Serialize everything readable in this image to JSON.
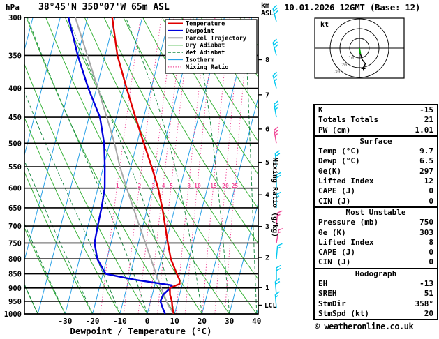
{
  "meta": {
    "title": "38°45'N 350°07'W 65m ASL",
    "datetime": "10.01.2026 12GMT (Base: 12)",
    "copyright": "© weatheronline.co.uk"
  },
  "axes": {
    "pressure_unit": "hPa",
    "altitude_unit_lines": [
      "km",
      "ASL"
    ],
    "x_label": "Dewpoint / Temperature (°C)",
    "x_ticks": [
      -30,
      -20,
      -10,
      0,
      10,
      20,
      30,
      40
    ],
    "pressure_ticks": [
      300,
      350,
      400,
      450,
      500,
      550,
      600,
      650,
      700,
      750,
      800,
      850,
      900,
      950,
      1000
    ],
    "km_ticks": [
      1,
      2,
      3,
      4,
      5,
      6,
      7,
      8
    ],
    "mixing_ratio_axis_label": "Mixing Ratio (g/kg)",
    "lcl_label": "LCL"
  },
  "legend": [
    {
      "label": "Temperature",
      "color": "#e00000",
      "style": "solid",
      "width": 2
    },
    {
      "label": "Dewpoint",
      "color": "#0000dd",
      "style": "solid",
      "width": 2
    },
    {
      "label": "Parcel Trajectory",
      "color": "#a6a6a6",
      "style": "solid",
      "width": 2
    },
    {
      "label": "Dry Adiabat",
      "color": "#3cb43c",
      "style": "solid",
      "width": 1.3
    },
    {
      "label": "Wet Adiabat",
      "color": "#1e8c46",
      "style": "dashed",
      "width": 1.3
    },
    {
      "label": "Isotherm",
      "color": "#28a0e6",
      "style": "solid",
      "width": 1.3
    },
    {
      "label": "Mixing Ratio",
      "color": "#f04696",
      "style": "dotted",
      "width": 1.3
    }
  ],
  "chart_data": {
    "type": "line",
    "variant": "skew-t-log-p",
    "title": "38°45'N 350°07'W 65m ASL",
    "x_axis": {
      "label": "Dewpoint / Temperature (°C)",
      "min": -40,
      "max": 40,
      "ticks": [
        -30,
        -20,
        -10,
        0,
        10,
        20,
        30,
        40
      ]
    },
    "y_axis": {
      "label": "hPa",
      "scale": "log",
      "min": 300,
      "max": 1000,
      "ticks": [
        300,
        350,
        400,
        450,
        500,
        550,
        600,
        650,
        700,
        750,
        800,
        850,
        900,
        950,
        1000
      ]
    },
    "isotherm_step": 10,
    "dry_adiabat_step": 10,
    "wet_adiabat_step": 10,
    "mixing_ratio_lines": [
      1,
      2,
      3,
      4,
      5,
      8,
      10,
      15,
      20,
      25
    ],
    "lcl_pressure": 965,
    "colors": {
      "isotherm": "#28a0e6",
      "dry_adiabat": "#3cb43c",
      "wet_adiabat": "#1e8c46",
      "mixing_ratio": "#f04696",
      "pressure_line": "#000000"
    },
    "series": [
      {
        "name": "Temperature",
        "color": "#e00000",
        "points_p_t": [
          [
            1000,
            9.7
          ],
          [
            975,
            8.6
          ],
          [
            950,
            7.8
          ],
          [
            925,
            6.5
          ],
          [
            900,
            5.8
          ],
          [
            885,
            9.0
          ],
          [
            870,
            8.5
          ],
          [
            850,
            7.0
          ],
          [
            800,
            3.4
          ],
          [
            750,
            0.8
          ],
          [
            700,
            -1.8
          ],
          [
            650,
            -4.6
          ],
          [
            600,
            -8.0
          ],
          [
            550,
            -12.4
          ],
          [
            500,
            -17.5
          ],
          [
            450,
            -23.0
          ],
          [
            400,
            -29.0
          ],
          [
            350,
            -35.5
          ],
          [
            300,
            -41.0
          ]
        ]
      },
      {
        "name": "Dewpoint",
        "color": "#0000dd",
        "points_p_t": [
          [
            1000,
            6.5
          ],
          [
            975,
            5.0
          ],
          [
            950,
            3.6
          ],
          [
            925,
            4.0
          ],
          [
            900,
            6.0
          ],
          [
            890,
            6.3
          ],
          [
            870,
            -8.0
          ],
          [
            850,
            -19.0
          ],
          [
            800,
            -23.5
          ],
          [
            750,
            -26.0
          ],
          [
            700,
            -26.5
          ],
          [
            650,
            -26.8
          ],
          [
            600,
            -27.5
          ],
          [
            550,
            -29.5
          ],
          [
            500,
            -32.0
          ],
          [
            450,
            -36.0
          ],
          [
            400,
            -43.0
          ],
          [
            350,
            -50.0
          ],
          [
            300,
            -57.0
          ]
        ]
      },
      {
        "name": "Parcel Trajectory",
        "color": "#a6a6a6",
        "points_p_t": [
          [
            1000,
            9.7
          ],
          [
            965,
            6.8
          ],
          [
            900,
            2.6
          ],
          [
            850,
            -0.6
          ],
          [
            800,
            -3.9
          ],
          [
            750,
            -7.4
          ],
          [
            700,
            -11.2
          ],
          [
            650,
            -15.2
          ],
          [
            600,
            -19.5
          ],
          [
            550,
            -24.0
          ],
          [
            500,
            -28.2
          ],
          [
            450,
            -33.5
          ],
          [
            400,
            -39.5
          ],
          [
            350,
            -46.5
          ],
          [
            300,
            -54.5
          ]
        ]
      }
    ],
    "wind_barbs": [
      {
        "p": 975,
        "speed_kt": 15,
        "dir_deg": 355,
        "color": "#00c8f0"
      },
      {
        "p": 925,
        "speed_kt": 20,
        "dir_deg": 355,
        "color": "#00c8f0"
      },
      {
        "p": 875,
        "speed_kt": 20,
        "dir_deg": 0,
        "color": "#00c8f0"
      },
      {
        "p": 800,
        "speed_kt": 15,
        "dir_deg": 5,
        "color": "#00c8f0"
      },
      {
        "p": 750,
        "speed_kt": 15,
        "dir_deg": 10,
        "color": "#f04696"
      },
      {
        "p": 700,
        "speed_kt": 15,
        "dir_deg": 5,
        "color": "#f04696"
      },
      {
        "p": 650,
        "speed_kt": 15,
        "dir_deg": 0,
        "color": "#00c8f0"
      },
      {
        "p": 600,
        "speed_kt": 20,
        "dir_deg": 0,
        "color": "#00c8f0"
      },
      {
        "p": 550,
        "speed_kt": 20,
        "dir_deg": 355,
        "color": "#00c8f0"
      },
      {
        "p": 500,
        "speed_kt": 25,
        "dir_deg": 350,
        "color": "#f04696"
      },
      {
        "p": 450,
        "speed_kt": 25,
        "dir_deg": 350,
        "color": "#00c8f0"
      },
      {
        "p": 400,
        "speed_kt": 25,
        "dir_deg": 345,
        "color": "#00c8f0"
      },
      {
        "p": 350,
        "speed_kt": 30,
        "dir_deg": 345,
        "color": "#00c8f0"
      },
      {
        "p": 305,
        "speed_kt": 30,
        "dir_deg": 345,
        "color": "#00c8f0"
      }
    ]
  },
  "hodograph": {
    "unit_label": "kt",
    "ring_interval_kt": 10,
    "rings_kt": [
      10,
      20,
      30
    ],
    "trace_kt": [
      [
        0,
        0
      ],
      [
        1,
        -6
      ],
      [
        3,
        -12
      ],
      [
        6,
        -16
      ],
      [
        4,
        -21
      ]
    ],
    "surface_segment_color": "#00aa00",
    "trace_color": "#000000"
  },
  "stats": {
    "sections": [
      {
        "header": "",
        "rows": [
          [
            "K",
            "-15"
          ],
          [
            "Totals Totals",
            "21"
          ],
          [
            "PW (cm)",
            "1.01"
          ]
        ]
      },
      {
        "header": "Surface",
        "rows": [
          [
            "Temp (°C)",
            "9.7"
          ],
          [
            "Dewp (°C)",
            "6.5"
          ],
          [
            "θe(K)",
            "297"
          ],
          [
            "Lifted Index",
            "12"
          ],
          [
            "CAPE (J)",
            "0"
          ],
          [
            "CIN (J)",
            "0"
          ]
        ]
      },
      {
        "header": "Most Unstable",
        "rows": [
          [
            "Pressure (mb)",
            "750"
          ],
          [
            "θe (K)",
            "303"
          ],
          [
            "Lifted Index",
            "8"
          ],
          [
            "CAPE (J)",
            "0"
          ],
          [
            "CIN (J)",
            "0"
          ]
        ]
      },
      {
        "header": "Hodograph",
        "rows": [
          [
            "EH",
            "-13"
          ],
          [
            "SREH",
            "51"
          ],
          [
            "StmDir",
            "358°"
          ],
          [
            "StmSpd (kt)",
            "20"
          ]
        ]
      }
    ]
  }
}
